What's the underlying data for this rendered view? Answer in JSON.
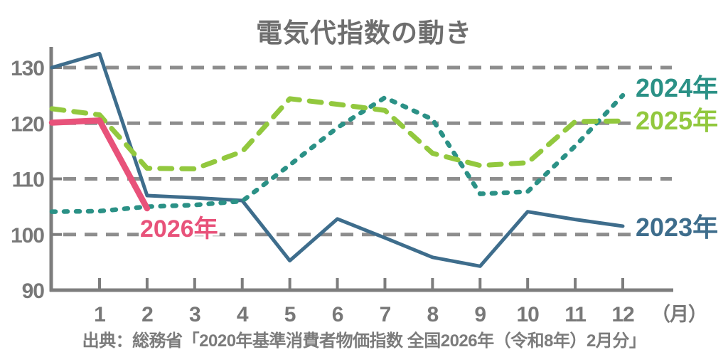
{
  "title": "電気代指数の動き",
  "source": "出典：総務省「2020年基準消費者物価指数 全国2026年（令和8年）2月分」",
  "colors": {
    "grid": "#8d8d8d",
    "axis": "#7d7d7d",
    "axis_text": "#787878",
    "title_text": "#6e6e6e"
  },
  "chart_data": {
    "type": "line",
    "title": "電気代指数の動き",
    "xlabel": "（月）",
    "ylabel": "",
    "x_axis_suffix": "（月）",
    "x_months": [
      0,
      1,
      2,
      3,
      4,
      5,
      6,
      7,
      8,
      9,
      10,
      11,
      12
    ],
    "x_tick_labels": [
      "1",
      "2",
      "3",
      "4",
      "5",
      "6",
      "7",
      "8",
      "9",
      "10",
      "11",
      "12"
    ],
    "y_ticks": [
      130,
      120,
      110,
      100,
      90
    ],
    "gridlines": [
      130,
      120,
      110,
      100
    ],
    "ylim": [
      90,
      134
    ],
    "grid": "horizontal-dashed",
    "legend_position": "inline-right-of-lines",
    "note": "x position 0 is the point drawn on the y-axis (value before month 1)",
    "series": [
      {
        "name": "2023年",
        "color": "#3e6d8c",
        "style": "solid",
        "values": [
          130,
          132.5,
          107,
          106.6,
          106.1,
          95.3,
          102.8,
          99.4,
          95.9,
          94.3,
          104.1,
          102.7,
          101.5
        ]
      },
      {
        "name": "2024年",
        "color": "#2b9186",
        "style": "dotted",
        "values": [
          104.1,
          104.2,
          105,
          105.3,
          106,
          112.5,
          119.2,
          124.6,
          120.7,
          107.3,
          107.7,
          115.9,
          125
        ]
      },
      {
        "name": "2025年",
        "color": "#92c83e",
        "style": "dashed",
        "values": [
          122.6,
          121.5,
          111.9,
          111.8,
          114.9,
          124.4,
          123.4,
          122.3,
          114.6,
          112.4,
          112.9,
          120.3,
          120.4
        ]
      },
      {
        "name": "2026年",
        "color": "#e8527a",
        "style": "solid",
        "values": [
          120.1,
          120.5,
          104.7
        ]
      }
    ]
  }
}
